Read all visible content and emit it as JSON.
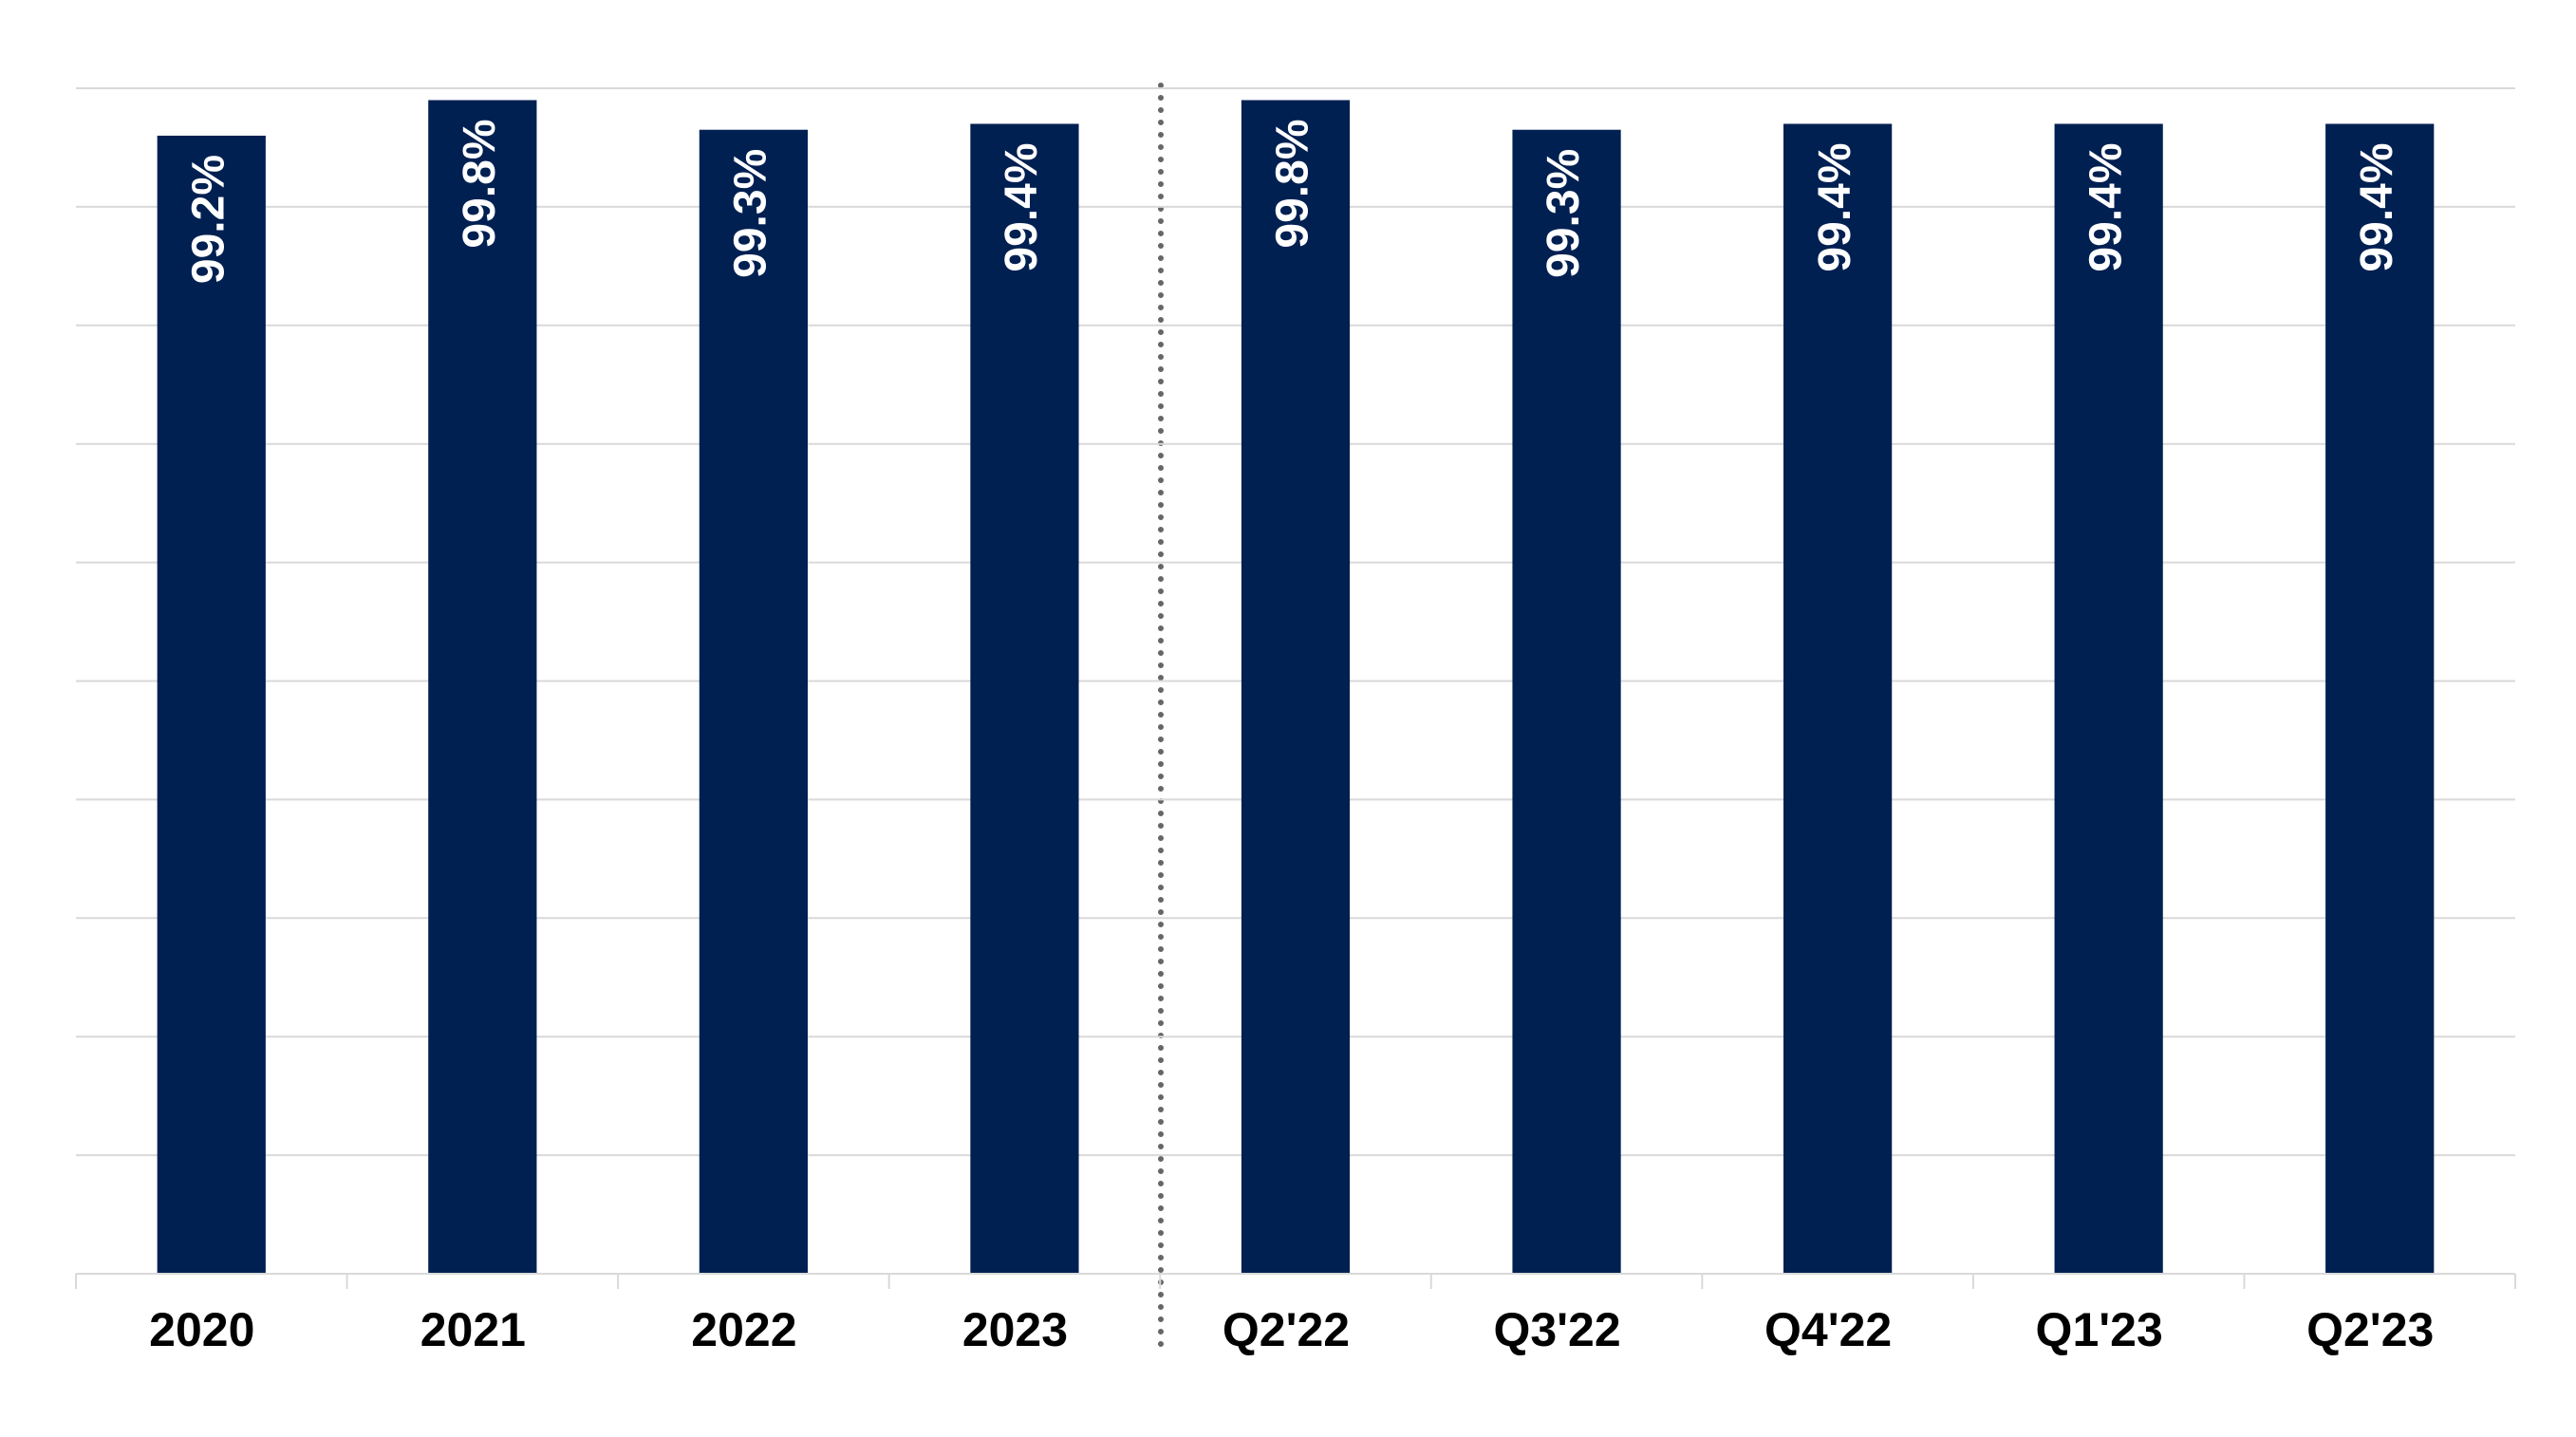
{
  "chart_data": {
    "type": "bar",
    "categories": [
      "2020",
      "2021",
      "2022",
      "2023",
      "Q2'22",
      "Q3'22",
      "Q4'22",
      "Q1'23",
      "Q2'23"
    ],
    "values": [
      99.2,
      99.8,
      99.3,
      99.4,
      99.8,
      99.3,
      99.4,
      99.4,
      99.4
    ],
    "value_labels": [
      "99.2%",
      "99.8%",
      "99.3%",
      "99.4%",
      "99.8%",
      "99.3%",
      "99.4%",
      "99.4%",
      "99.4%"
    ],
    "color": "#012052",
    "ylim": [
      80,
      100
    ],
    "yticks": [
      80,
      82,
      84,
      86,
      88,
      90,
      92,
      94,
      96,
      98,
      100
    ],
    "grid": true
  }
}
